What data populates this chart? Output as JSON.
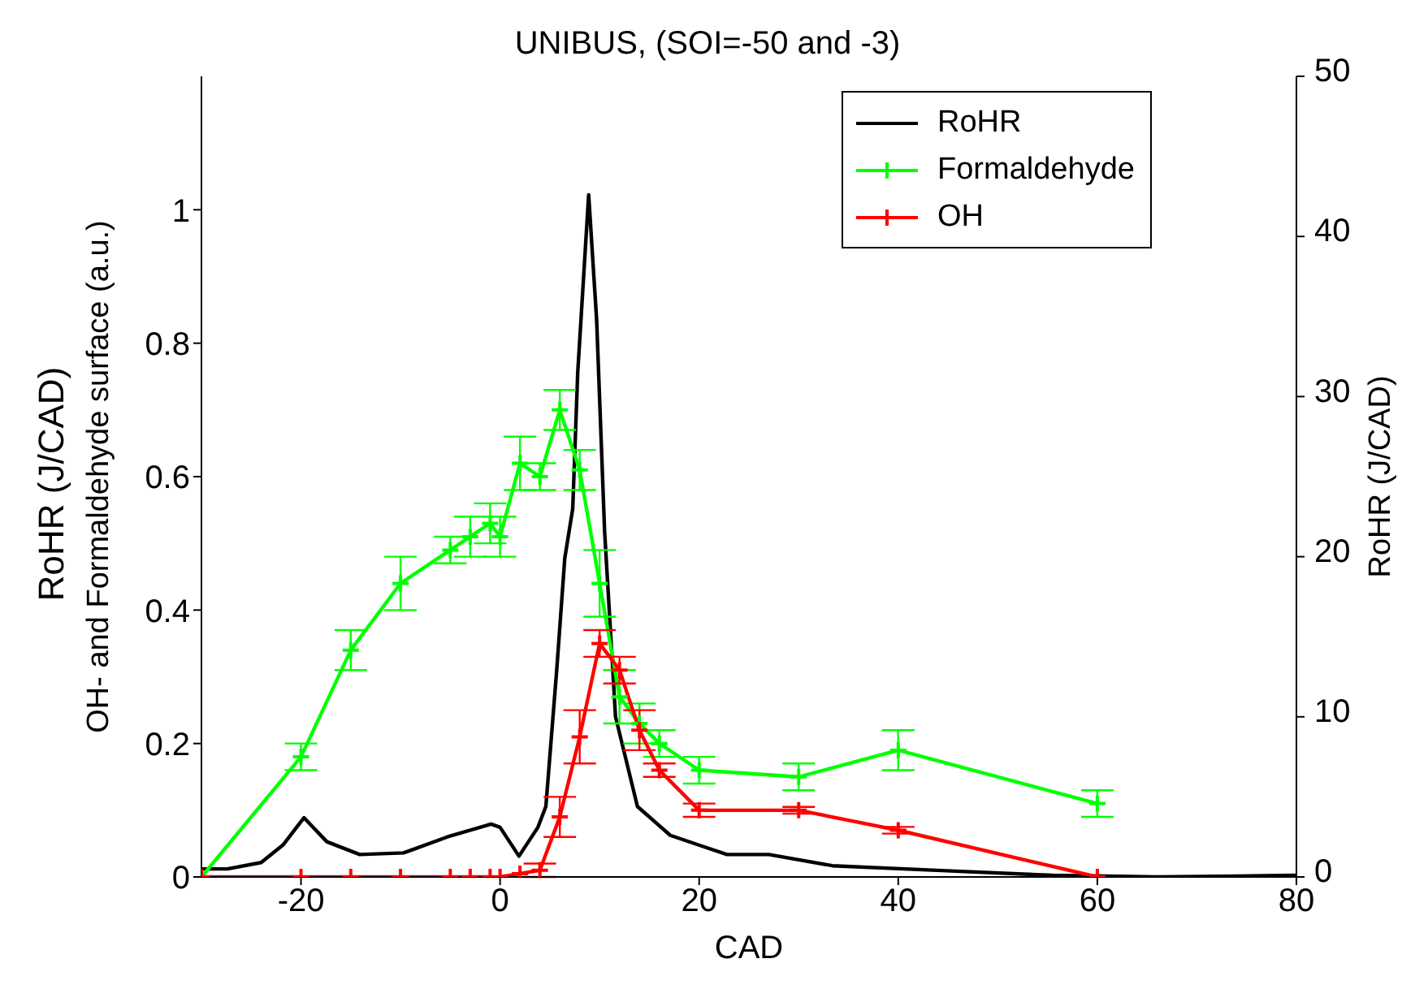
{
  "chart_data": {
    "type": "line",
    "title": "UNIBUS, (SOI=-50 and -3)",
    "xlabel": "CAD",
    "ylabel": "OH- and Formaldehyde surface (a.u.)",
    "y2label": "RoHR (J/CAD)",
    "annotations": [
      "RoHR (J/CAD)"
    ],
    "xlim": [
      -30,
      80
    ],
    "xticks": [
      -20,
      0,
      20,
      40,
      60,
      80
    ],
    "ylim": [
      0,
      1.2
    ],
    "yticks": [
      0,
      0.2,
      0.4,
      0.6,
      0.8,
      1
    ],
    "y2lim": [
      0,
      50
    ],
    "y2ticks": [
      0,
      10,
      20,
      30,
      40,
      50
    ],
    "grid": false,
    "legend": "top right",
    "line_style": "solid",
    "series": [
      {
        "name": "RoHR",
        "color": "#000000",
        "axis": "y2",
        "marker": "none",
        "x": [
          -30,
          -27.4,
          -24,
          -21.8,
          -19.7,
          -17.4,
          -14.1,
          -9.7,
          -5.3,
          -0.9,
          0,
          1.9,
          3.8,
          4.6,
          5.7,
          6.5,
          7.3,
          7.8,
          8.9,
          9.7,
          10.5,
          11.6,
          13.8,
          17.1,
          20.4,
          22.8,
          27,
          33.4,
          44.4,
          55.5,
          66,
          80
        ],
        "values": [
          0.5,
          0.5,
          0.9,
          2,
          3.7,
          2.2,
          1.4,
          1.5,
          2.5,
          3.3,
          3.1,
          1.3,
          3.1,
          4.4,
          13,
          19.9,
          23,
          31.5,
          42.6,
          34.8,
          21.6,
          10,
          4.4,
          2.6,
          1.9,
          1.4,
          1.4,
          0.7,
          0.4,
          0.1,
          0,
          0.1
        ]
      },
      {
        "name": "Formaldehyde",
        "color": "#00ff00",
        "marker": "cross",
        "x": [
          -30,
          -20,
          -15,
          -10,
          -5,
          -3,
          -1,
          0,
          2,
          4,
          6,
          8,
          10,
          12,
          14,
          16,
          20,
          30,
          40,
          60
        ],
        "values": [
          0,
          0.18,
          0.34,
          0.44,
          0.49,
          0.51,
          0.53,
          0.51,
          0.62,
          0.6,
          0.7,
          0.61,
          0.44,
          0.27,
          0.23,
          0.2,
          0.16,
          0.15,
          0.19,
          0.11
        ],
        "errors": [
          null,
          0.02,
          0.03,
          0.04,
          0.02,
          0.03,
          0.03,
          0.03,
          0.04,
          0.02,
          0.03,
          0.03,
          0.05,
          0.04,
          0.03,
          0.02,
          0.02,
          0.02,
          0.03,
          0.02
        ]
      },
      {
        "name": "OH",
        "color": "#ff0000",
        "marker": "cross",
        "x": [
          -30,
          -20,
          -15,
          -10,
          -5,
          -3,
          -1,
          0,
          2,
          4,
          6,
          8,
          10,
          12,
          14,
          16,
          20,
          30,
          40,
          60
        ],
        "values": [
          0,
          0,
          0,
          0,
          0,
          0,
          0,
          0,
          0.005,
          0.01,
          0.09,
          0.21,
          0.35,
          0.31,
          0.22,
          0.16,
          0.1,
          0.1,
          0.07,
          0
        ],
        "errors": [
          null,
          null,
          null,
          null,
          null,
          null,
          null,
          null,
          null,
          0.01,
          0.03,
          0.04,
          0.02,
          0.02,
          0.03,
          0.01,
          0.01,
          0.005,
          0.005,
          null
        ]
      }
    ]
  }
}
